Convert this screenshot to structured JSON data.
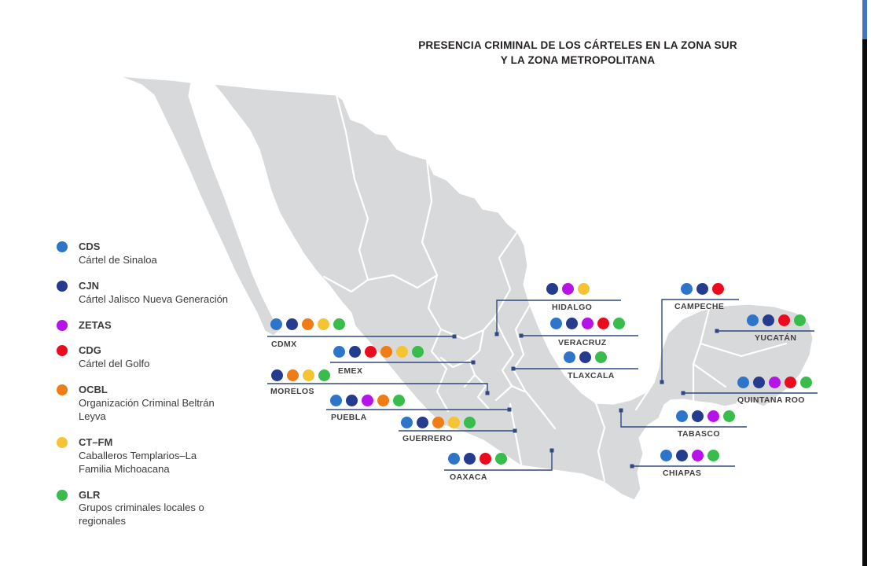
{
  "title": {
    "line1": "PRESENCIA CRIMINAL DE LOS CÁRTELES EN LA ZONA SUR",
    "line2": "Y LA ZONA METROPOLITANA"
  },
  "colors": {
    "CDS": "#2E75C9",
    "CJN": "#253B8D",
    "ZETAS": "#B613E8",
    "CDG": "#EA0C1E",
    "OCBL": "#F07C15",
    "CT-FM": "#F5C433",
    "GLR": "#39BC4C",
    "map_fill": "#D8D9DB",
    "connector": "#31497E"
  },
  "legend": [
    {
      "code": "CDS",
      "name": "Cártel de Sinaloa",
      "group": "CDS"
    },
    {
      "code": "CJN",
      "name": "Cártel Jalisco Nueva Generación",
      "group": "CJN"
    },
    {
      "code": "ZETAS",
      "name": "",
      "group": "ZETAS"
    },
    {
      "code": "CDG",
      "name": "Cártel del Golfo",
      "group": "CDG"
    },
    {
      "code": "OCBL",
      "name": "Organización Criminal Beltrán\nLeyva",
      "group": "OCBL"
    },
    {
      "code": "CT–FM",
      "name": "Caballeros Templarios–La\nFamilia Michoacana",
      "group": "CT-FM"
    },
    {
      "code": "GLR",
      "name": "Grupos criminales locales o\nregionales",
      "group": "GLR"
    }
  ],
  "callouts": [
    {
      "id": "cdmx",
      "state": "CDMX",
      "groups": [
        "CDS",
        "CJN",
        "OCBL",
        "CT-FM",
        "GLR"
      ]
    },
    {
      "id": "emex",
      "state": "EMEX",
      "groups": [
        "CDS",
        "CJN",
        "CDG",
        "OCBL",
        "CT-FM",
        "GLR"
      ]
    },
    {
      "id": "morelos",
      "state": "MORELOS",
      "groups": [
        "CJN",
        "OCBL",
        "CT-FM",
        "GLR"
      ]
    },
    {
      "id": "puebla",
      "state": "PUEBLA",
      "groups": [
        "CDS",
        "CJN",
        "ZETAS",
        "OCBL",
        "GLR"
      ]
    },
    {
      "id": "guerrero",
      "state": "GUERRERO",
      "groups": [
        "CDS",
        "CJN",
        "OCBL",
        "CT-FM",
        "GLR"
      ]
    },
    {
      "id": "oaxaca",
      "state": "OAXACA",
      "groups": [
        "CDS",
        "CJN",
        "CDG",
        "GLR"
      ]
    },
    {
      "id": "hidalgo",
      "state": "HIDALGO",
      "groups": [
        "CJN",
        "ZETAS",
        "CT-FM"
      ]
    },
    {
      "id": "veracruz",
      "state": "VERACRUZ",
      "groups": [
        "CDS",
        "CJN",
        "ZETAS",
        "CDG",
        "GLR"
      ]
    },
    {
      "id": "tlaxcala",
      "state": "TLAXCALA",
      "groups": [
        "CDS",
        "CJN",
        "GLR"
      ]
    },
    {
      "id": "campeche",
      "state": "CAMPECHE",
      "groups": [
        "CDS",
        "CJN",
        "CDG"
      ]
    },
    {
      "id": "yucatan",
      "state": "YUCATÁN",
      "groups": [
        "CDS",
        "CJN",
        "CDG",
        "GLR"
      ]
    },
    {
      "id": "qroo",
      "state": "QUINTANA ROO",
      "groups": [
        "CDS",
        "CJN",
        "ZETAS",
        "CDG",
        "GLR"
      ]
    },
    {
      "id": "tabasco",
      "state": "TABASCO",
      "groups": [
        "CDS",
        "CJN",
        "ZETAS",
        "GLR"
      ]
    },
    {
      "id": "chiapas",
      "state": "CHIAPAS",
      "groups": [
        "CDS",
        "CJN",
        "ZETAS",
        "GLR"
      ]
    }
  ]
}
